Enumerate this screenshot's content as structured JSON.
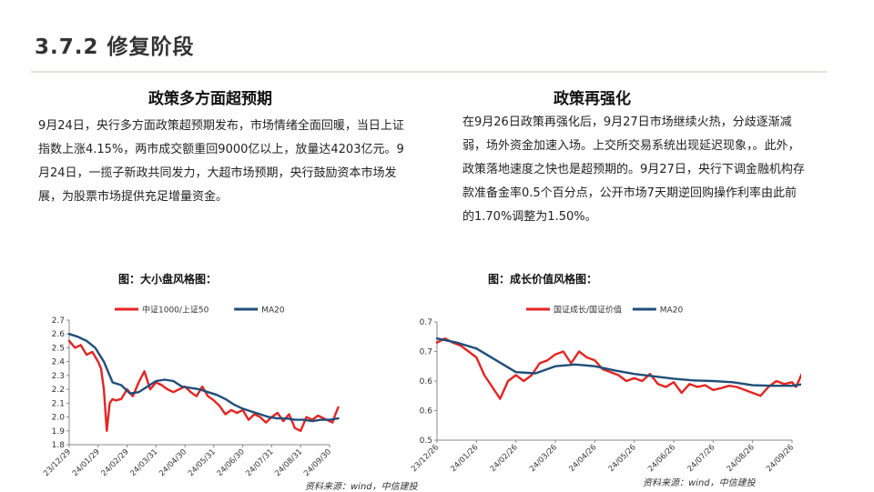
{
  "page": {
    "title": "3.7.2 修复阶段",
    "left": {
      "heading": "政策多方面超预期",
      "body": "9月24日，央行多方面政策超预期发布，市场情绪全面回暖，当日上证指数上涨4.15%，两市成交额重回9000亿以上，放量达4203亿元。9月24日，一揽子新政共同发力，大超市场预期，央行鼓励资本市场发展，为股票市场提供充足增量资金。"
    },
    "right": {
      "heading": "政策再强化",
      "body": "在9月26日政策再强化后，9月27日市场继续火热，分歧逐渐减弱，场外资金加速入场。上交所交易系统出现延迟现象，。此外，政策落地速度之快也是超预期的。9月27日，央行下调金融机构存款准备金率0.5个百分点，公开市场7天期逆回购操作利率由此前的1.70%调整为1.50%。"
    },
    "colors": {
      "red": "#e52421",
      "blue": "#1f4e79",
      "text": "#222222"
    }
  },
  "chart_data": [
    {
      "type": "line",
      "figure_title": "图：大小盘风格图：",
      "source": "资料来源：wind，中信建投",
      "x_ticks": [
        "23/12/29",
        "24/01/29",
        "24/02/29",
        "24/03/31",
        "24/04/30",
        "24/05/31",
        "24/06/30",
        "24/07/31",
        "24/08/31",
        "24/09/30"
      ],
      "ylim": [
        1.8,
        2.7
      ],
      "y_ticks": [
        "1.8",
        "1.9",
        "2.0",
        "2.1",
        "2.2",
        "2.3",
        "2.4",
        "2.5",
        "2.6",
        "2.7"
      ],
      "series": [
        {
          "name": "中证1000/上证50",
          "color": "#e52421",
          "x": [
            0,
            0.2,
            0.4,
            0.6,
            0.8,
            1.0,
            1.1,
            1.2,
            1.3,
            1.4,
            1.5,
            1.6,
            1.8,
            2.0,
            2.2,
            2.4,
            2.6,
            2.8,
            3.0,
            3.2,
            3.4,
            3.6,
            3.8,
            4.0,
            4.2,
            4.4,
            4.6,
            4.8,
            5.0,
            5.2,
            5.4,
            5.6,
            5.8,
            6.0,
            6.2,
            6.4,
            6.6,
            6.8,
            7.0,
            7.2,
            7.4,
            7.6,
            7.8,
            8.0,
            8.2,
            8.4,
            8.6,
            8.8,
            9.0,
            9.1,
            9.2,
            9.3
          ],
          "values": [
            2.55,
            2.5,
            2.52,
            2.45,
            2.47,
            2.4,
            2.35,
            2.2,
            1.9,
            2.1,
            2.13,
            2.12,
            2.13,
            2.2,
            2.15,
            2.25,
            2.33,
            2.2,
            2.25,
            2.23,
            2.2,
            2.18,
            2.2,
            2.22,
            2.18,
            2.15,
            2.22,
            2.15,
            2.12,
            2.08,
            2.02,
            2.05,
            2.03,
            2.05,
            1.98,
            2.02,
            2.0,
            1.96,
            2.0,
            2.03,
            1.97,
            2.02,
            1.92,
            1.9,
            2.0,
            1.98,
            2.01,
            1.99,
            1.97,
            1.96,
            2.02,
            2.07
          ]
        },
        {
          "name": "MA20",
          "color": "#1f4e79",
          "x": [
            0,
            0.3,
            0.6,
            0.9,
            1.2,
            1.5,
            1.8,
            2.1,
            2.4,
            2.7,
            3.0,
            3.3,
            3.6,
            3.9,
            4.2,
            4.5,
            4.8,
            5.1,
            5.4,
            5.7,
            6.0,
            6.3,
            6.6,
            6.9,
            7.2,
            7.5,
            7.8,
            8.1,
            8.4,
            8.7,
            9.0,
            9.3
          ],
          "values": [
            2.6,
            2.58,
            2.55,
            2.5,
            2.4,
            2.25,
            2.23,
            2.17,
            2.18,
            2.22,
            2.26,
            2.27,
            2.26,
            2.22,
            2.21,
            2.2,
            2.18,
            2.16,
            2.13,
            2.09,
            2.06,
            2.04,
            2.02,
            2.0,
            1.99,
            1.99,
            1.98,
            1.98,
            1.97,
            1.98,
            1.98,
            1.99
          ]
        }
      ]
    },
    {
      "type": "line",
      "figure_title": "图：成长价值风格图：",
      "source": "资料来源：wind，中信建投",
      "x_ticks": [
        "23/12/26",
        "24/01/26",
        "24/02/26",
        "24/03/26",
        "24/04/26",
        "24/05/26",
        "24/06/26",
        "24/07/26",
        "24/08/26",
        "24/09/26"
      ],
      "ylim": [
        0.5,
        0.7
      ],
      "y_ticks": [
        "0.5",
        "0.6",
        "0.6",
        "0.7",
        "0.7"
      ],
      "series": [
        {
          "name": "国证成长/国证价值",
          "color": "#e52421",
          "x": [
            0,
            0.2,
            0.4,
            0.6,
            0.8,
            1.0,
            1.2,
            1.4,
            1.6,
            1.8,
            2.0,
            2.2,
            2.4,
            2.6,
            2.8,
            3.0,
            3.2,
            3.4,
            3.6,
            3.8,
            4.0,
            4.2,
            4.4,
            4.6,
            4.8,
            5.0,
            5.2,
            5.4,
            5.6,
            5.8,
            6.0,
            6.2,
            6.4,
            6.6,
            6.8,
            7.0,
            7.2,
            7.4,
            7.6,
            7.8,
            8.0,
            8.2,
            8.4,
            8.6,
            8.8,
            9.0,
            9.1,
            9.2,
            9.3
          ],
          "values": [
            0.665,
            0.672,
            0.665,
            0.66,
            0.65,
            0.64,
            0.61,
            0.59,
            0.57,
            0.6,
            0.61,
            0.6,
            0.61,
            0.63,
            0.635,
            0.645,
            0.65,
            0.63,
            0.65,
            0.64,
            0.635,
            0.62,
            0.615,
            0.61,
            0.6,
            0.605,
            0.6,
            0.612,
            0.595,
            0.59,
            0.598,
            0.58,
            0.595,
            0.59,
            0.593,
            0.585,
            0.588,
            0.592,
            0.59,
            0.585,
            0.58,
            0.575,
            0.59,
            0.6,
            0.595,
            0.598,
            0.59,
            0.605,
            0.62
          ]
        },
        {
          "name": "MA20",
          "color": "#1f4e79",
          "x": [
            0,
            0.5,
            1.0,
            1.5,
            2.0,
            2.5,
            3.0,
            3.5,
            4.0,
            4.5,
            5.0,
            5.5,
            6.0,
            6.5,
            7.0,
            7.5,
            8.0,
            8.5,
            9.0,
            9.3
          ],
          "values": [
            0.672,
            0.665,
            0.655,
            0.635,
            0.615,
            0.613,
            0.625,
            0.628,
            0.625,
            0.618,
            0.612,
            0.608,
            0.604,
            0.601,
            0.6,
            0.598,
            0.593,
            0.592,
            0.592,
            0.595
          ]
        }
      ]
    }
  ]
}
